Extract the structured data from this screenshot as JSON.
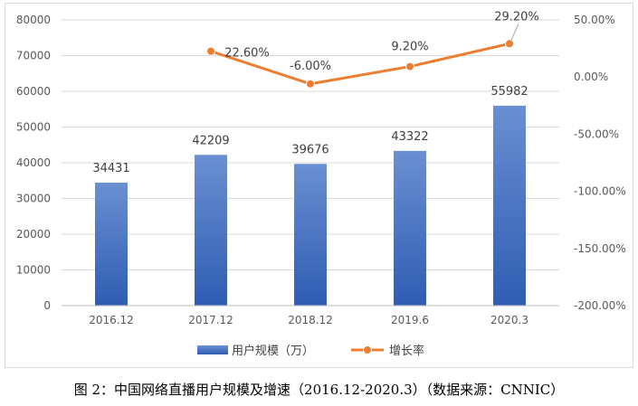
{
  "chart_data": {
    "type": "bar+line",
    "categories": [
      "2016.12",
      "2017.12",
      "2018.12",
      "2019.6",
      "2020.3"
    ],
    "series": [
      {
        "name": "用户规模（万）",
        "type": "bar",
        "axis": "left",
        "values": [
          34431,
          42209,
          39676,
          43322,
          55982
        ],
        "color": "#4472c4"
      },
      {
        "name": "增长率",
        "type": "line",
        "axis": "right",
        "values": [
          null,
          22.6,
          -6.0,
          9.2,
          29.2
        ],
        "value_labels": [
          "",
          "22.60%",
          "-6.00%",
          "9.20%",
          "29.20%"
        ],
        "color": "#ed7d31"
      }
    ],
    "y_left": {
      "min": 0,
      "max": 80000,
      "ticks": [
        "0",
        "10000",
        "20000",
        "30000",
        "40000",
        "50000",
        "60000",
        "70000",
        "80000"
      ]
    },
    "y_right": {
      "min": -200,
      "max": 50,
      "ticks": [
        "-200.00%",
        "-150.00%",
        "-100.00%",
        "-50.00%",
        "0.00%",
        "50.00%"
      ]
    },
    "grid": true,
    "legend_position": "bottom"
  },
  "caption": "图 2：中国网络直播用户规模及增速（2016.12-2020.3）（数据来源：CNNIC）"
}
